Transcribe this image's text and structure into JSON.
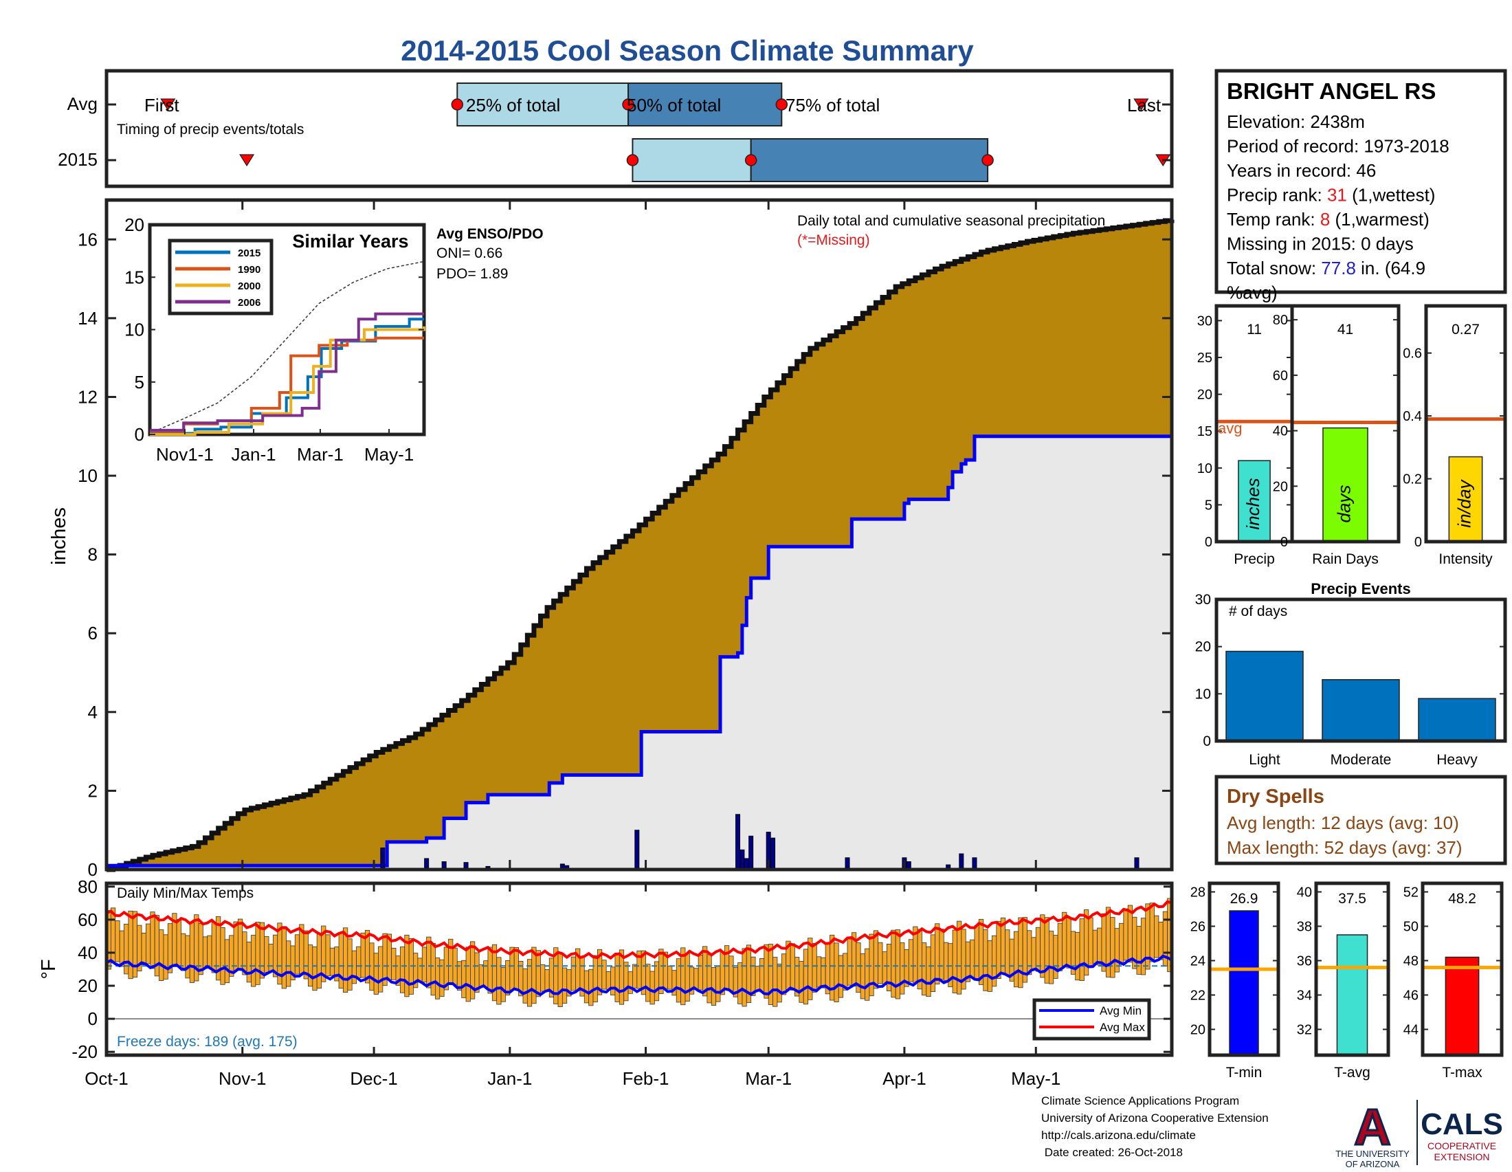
{
  "title": "2014-2015 Cool Season Climate Summary",
  "station": {
    "name": "BRIGHT ANGEL RS",
    "lines": [
      {
        "parts": [
          {
            "t": "Elevation: 2438m",
            "c": "#000"
          }
        ]
      },
      {
        "parts": [
          {
            "t": "Period of record: 1973-2018",
            "c": "#000"
          }
        ]
      },
      {
        "parts": [
          {
            "t": "Years in record: 46",
            "c": "#000"
          }
        ]
      },
      {
        "parts": [
          {
            "t": "Precip rank: ",
            "c": "#000"
          },
          {
            "t": "31",
            "c": "#e41a1c"
          },
          {
            "t": " (1,wettest)",
            "c": "#000"
          }
        ]
      },
      {
        "parts": [
          {
            "t": "Temp rank: ",
            "c": "#000"
          },
          {
            "t": "8",
            "c": "#e41a1c"
          },
          {
            "t": " (1,warmest)",
            "c": "#000"
          }
        ]
      },
      {
        "parts": [
          {
            "t": "Missing in 2015: 0 days",
            "c": "#000"
          }
        ]
      },
      {
        "parts": [
          {
            "t": "Total snow: ",
            "c": "#000"
          },
          {
            "t": "77.8",
            "c": "#1f1fd0"
          },
          {
            "t": " in. (64.9",
            "c": "#000"
          }
        ]
      },
      {
        "parts": [
          {
            "t": "%avg)",
            "c": "#000"
          }
        ]
      }
    ]
  },
  "chart_data": [
    {
      "id": "timing",
      "type": "timeline",
      "rows": [
        "Avg",
        "2015"
      ],
      "note": "Timing of precip events/totals",
      "avg": {
        "first": "Oct-15",
        "p25": "Dec-20",
        "p50": "Jan-28",
        "p75": "Mar-4",
        "last": "May-25"
      },
      "y2015": {
        "first": "Nov-2",
        "p25": "Jan-29",
        "p50": "Feb-25",
        "p75": "Apr-20",
        "last": "May-30"
      },
      "labels": {
        "first": "First",
        "p25": "25% of total",
        "p50": "50% of total",
        "p75": "75% of total",
        "last": "Last"
      }
    },
    {
      "id": "precip-main",
      "type": "area",
      "title": "Daily total and cumulative seasonal precipitation",
      "missing_note": "(*=Missing)",
      "ylabel": "inches",
      "ylim": [
        0,
        17
      ],
      "yticks": [
        0,
        2,
        4,
        6,
        8,
        10,
        12,
        14,
        16
      ],
      "xticks": [
        "Oct-1",
        "Nov-1",
        "Dec-1",
        "Jan-1",
        "Feb-1",
        "Mar-1",
        "Apr-1",
        "May-1"
      ],
      "x_day_range": [
        0,
        243
      ],
      "avg_cumulative": {
        "day": [
          0,
          10,
          20,
          31,
          45,
          61,
          70,
          80,
          92,
          100,
          110,
          120,
          130,
          140,
          150,
          160,
          170,
          180,
          190,
          200,
          210,
          220,
          230,
          243
        ],
        "inches": [
          0,
          0.35,
          0.6,
          1.5,
          1.9,
          2.95,
          3.4,
          4.2,
          5.3,
          6.6,
          7.7,
          8.6,
          9.6,
          10.6,
          12.0,
          13.2,
          13.9,
          14.8,
          15.3,
          15.7,
          15.95,
          16.15,
          16.3,
          16.5
        ]
      },
      "cumulative_2015": {
        "day": [
          0,
          63,
          64,
          73,
          77,
          82,
          87,
          101,
          104,
          121,
          122,
          139,
          140,
          144,
          145,
          146,
          147,
          151,
          152,
          169,
          170,
          182,
          183,
          192,
          193,
          195,
          196,
          198,
          237,
          243
        ],
        "inches": [
          0.1,
          0.1,
          0.7,
          0.8,
          1.3,
          1.7,
          1.9,
          2.2,
          2.4,
          2.4,
          3.5,
          3.5,
          5.4,
          5.5,
          6.2,
          6.9,
          7.4,
          8.2,
          8.2,
          8.2,
          8.9,
          9.3,
          9.4,
          9.7,
          10.1,
          10.3,
          10.4,
          11.0,
          11.0,
          11.0
        ]
      },
      "daily_2015": {
        "day": [
          63,
          73,
          77,
          82,
          87,
          104,
          105,
          121,
          144,
          145,
          146,
          147,
          151,
          152,
          169,
          182,
          183,
          192,
          195,
          198,
          235
        ],
        "inches": [
          0.55,
          0.28,
          0.2,
          0.18,
          0.08,
          0.14,
          0.1,
          1.0,
          1.4,
          0.5,
          0.28,
          0.85,
          0.95,
          0.8,
          0.3,
          0.3,
          0.2,
          0.12,
          0.4,
          0.3,
          0.3
        ]
      }
    },
    {
      "id": "similar-years",
      "type": "line",
      "title": "Similar Years",
      "ylim": [
        0,
        20
      ],
      "yticks": [
        0,
        5,
        10,
        15,
        20
      ],
      "xticks": [
        "Nov1-1",
        "Jan-1",
        "Mar-1",
        "May-1"
      ],
      "x_day_range": [
        0,
        243
      ],
      "enso_title": "Avg ENSO/PDO",
      "oni": "ONI= 0.66",
      "pdo": "PDO= 1.89",
      "series": [
        {
          "name": "2015",
          "color": "#0072bd",
          "day": [
            0,
            40,
            63,
            90,
            121,
            140,
            152,
            170,
            200,
            230,
            243
          ],
          "values": [
            0.1,
            0.5,
            0.7,
            2,
            3.5,
            5.5,
            8.2,
            8.9,
            10.3,
            11,
            11
          ]
        },
        {
          "name": "1990",
          "color": "#d95319",
          "day": [
            0,
            30,
            60,
            90,
            115,
            125,
            150,
            175,
            200,
            243
          ],
          "values": [
            0.3,
            1,
            1.3,
            2.5,
            4,
            7.5,
            8.5,
            9,
            9.2,
            9.2
          ]
        },
        {
          "name": "2000",
          "color": "#edb120",
          "day": [
            0,
            40,
            70,
            100,
            125,
            145,
            160,
            190,
            243
          ],
          "values": [
            0,
            0.2,
            1,
            2,
            4,
            6.5,
            9,
            10,
            10.3
          ]
        },
        {
          "name": "2006",
          "color": "#7e2f8e",
          "day": [
            0,
            30,
            60,
            100,
            135,
            150,
            165,
            185,
            200,
            243
          ],
          "values": [
            0.4,
            1.1,
            1.3,
            1.8,
            2.5,
            6,
            9,
            11,
            11.5,
            11.5
          ]
        }
      ],
      "avg": {
        "day": [
          0,
          30,
          60,
          90,
          120,
          150,
          180,
          210,
          243
        ],
        "values": [
          0.1,
          1.5,
          3,
          5.5,
          9,
          12.5,
          14.5,
          15.8,
          16.5
        ]
      }
    },
    {
      "id": "precip-totals",
      "type": "bar",
      "title": "Precip",
      "value": 11,
      "avg": 16.3,
      "ylim": [
        0,
        32
      ],
      "yticks": [
        0,
        5,
        10,
        15,
        20,
        25,
        30
      ],
      "unit": "inches",
      "avg_label": "avg",
      "color": "#40e0d0"
    },
    {
      "id": "rain-days",
      "type": "bar",
      "title": "Rain Days",
      "value": 41,
      "avg": 43,
      "ylim": [
        0,
        85
      ],
      "yticks": [
        0,
        20,
        40,
        60,
        80
      ],
      "unit": "days",
      "color": "#7cfc00"
    },
    {
      "id": "intensity",
      "type": "bar",
      "title": "Intensity",
      "value": 0.27,
      "avg": 0.39,
      "ylim": [
        0,
        0.75
      ],
      "yticks": [
        0,
        0.2,
        0.4,
        0.6
      ],
      "unit": "in/day",
      "color": "#ffd700"
    },
    {
      "id": "precip-events",
      "type": "bar",
      "title": "Precip Events",
      "ylabel_note": "# of days",
      "categories": [
        "Light",
        "Moderate",
        "Heavy"
      ],
      "values": [
        19,
        13,
        9
      ],
      "ylim": [
        0,
        30
      ],
      "yticks": [
        0,
        10,
        20,
        30
      ],
      "color": "#0072bd"
    },
    {
      "id": "temps",
      "type": "bar",
      "title": "Daily Min/Max Temps",
      "ylabel": "°F",
      "ylim": [
        -22,
        82
      ],
      "yticks": [
        -20,
        0,
        20,
        40,
        60,
        80
      ],
      "freeze_line": 32,
      "legend": [
        "Avg Min",
        "Avg Max"
      ],
      "freeze_note": "Freeze days: 189 (avg. 175)",
      "avg_min": {
        "day": [
          0,
          30,
          60,
          80,
          92,
          100,
          120,
          140,
          150,
          165,
          180,
          200,
          215,
          230,
          243
        ],
        "values": [
          34,
          29,
          24,
          20,
          17,
          16,
          18,
          17,
          16,
          19,
          21,
          25,
          30,
          34,
          37
        ]
      },
      "avg_max": {
        "day": [
          0,
          15,
          30,
          45,
          60,
          75,
          90,
          110,
          130,
          145,
          160,
          175,
          190,
          205,
          220,
          235,
          243
        ],
        "values": [
          64,
          60,
          57,
          53,
          50,
          45,
          41,
          38,
          39,
          41,
          45,
          50,
          54,
          58,
          61,
          66,
          70
        ]
      }
    },
    {
      "id": "t-min",
      "type": "bar",
      "title": "T-min",
      "value": 26.9,
      "value_label": "26.9",
      "avg": 23.5,
      "ylim": [
        18.5,
        28.5
      ],
      "yticks": [
        20,
        22,
        24,
        26,
        28
      ],
      "color": "#0000ff"
    },
    {
      "id": "t-avg",
      "type": "bar",
      "title": "T-avg",
      "value": 37.5,
      "value_label": "37.5",
      "avg": 35.6,
      "ylim": [
        30.5,
        40.5
      ],
      "yticks": [
        32,
        34,
        36,
        38,
        40
      ],
      "color": "#40e0d0"
    },
    {
      "id": "t-max",
      "type": "bar",
      "title": "T-max",
      "value": 48.2,
      "value_label": "48.2",
      "avg": 47.6,
      "ylim": [
        42.5,
        52.5
      ],
      "yticks": [
        44,
        46,
        48,
        50,
        52
      ],
      "color": "#ff0000"
    }
  ],
  "dry_spells": {
    "title": "Dry Spells",
    "avg_length": "Avg length: 12 days (avg: 10)",
    "max_length": "Max length: 52 days (avg: 37)"
  },
  "credits": [
    "Climate Science Applications Program",
    "University of Arizona Cooperative Extension",
    "http://cals.arizona.edu/climate",
    " Date created: 26-Oct-2018"
  ],
  "logo": {
    "letter": "A",
    "ua_line1": "THE UNIVERSITY",
    "ua_line2": "OF ARIZONA",
    "cals": "CALS",
    "ext1": "COOPERATIVE",
    "ext2": "EXTENSION"
  },
  "colors": {
    "title": "#1f4e96",
    "brown": "#b8860b",
    "gray": "#e8e8e8",
    "blue": "#0000ff",
    "red": "#ff0000",
    "orange_avg": "#d95319",
    "dry": "#8b4513",
    "ua_red": "#ab0520",
    "ua_navy": "#0c234b",
    "box_light": "#add8e6",
    "box_dark": "#4682b4"
  }
}
